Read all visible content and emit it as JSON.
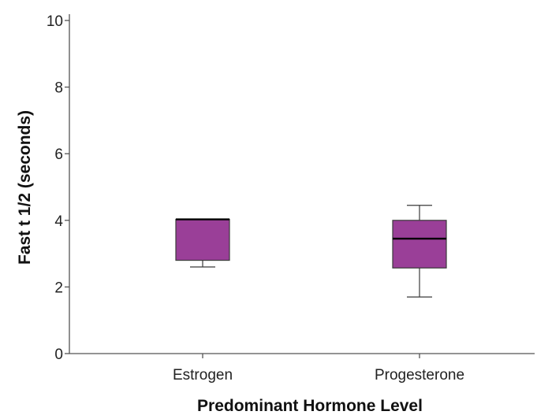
{
  "chart_data": {
    "type": "box",
    "xlabel": "Predominant Hormone Level",
    "ylabel": "Fast t 1/2 (seconds)",
    "ylim": [
      0,
      10
    ],
    "yticks": [
      0,
      2,
      4,
      6,
      8,
      10
    ],
    "categories": [
      "Estrogen",
      "Progesterone"
    ],
    "boxes": [
      {
        "category": "Estrogen",
        "min": 2.6,
        "q1": 2.8,
        "median": 4.03,
        "q3": 4.03,
        "max": 4.03
      },
      {
        "category": "Progesterone",
        "min": 1.7,
        "q1": 2.57,
        "median": 3.45,
        "q3": 4.0,
        "max": 4.45
      }
    ],
    "grid": false,
    "colors": {
      "box_fill": "#9a3f98",
      "box_stroke": "#3a3a3a",
      "median": "#000000",
      "axis": "#555555"
    }
  }
}
